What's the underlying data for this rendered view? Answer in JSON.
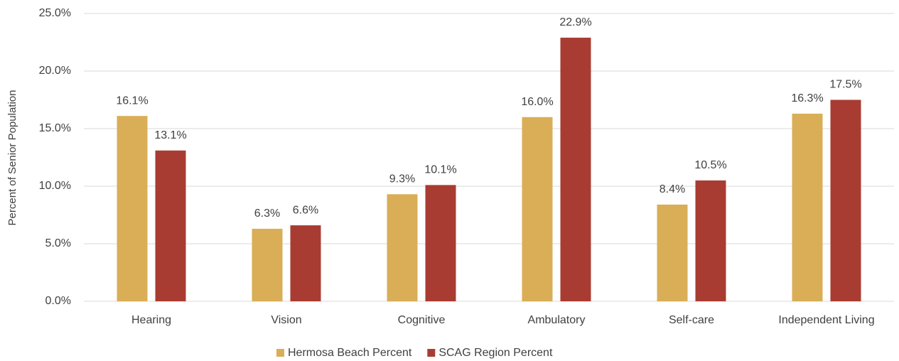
{
  "chart_data": {
    "type": "bar",
    "y_label": "Percent of Senior Population",
    "categories": [
      "Hearing",
      "Vision",
      "Cognitive",
      "Ambulatory",
      "Self-care",
      "Independent Living"
    ],
    "series": [
      {
        "name": "Hermosa Beach Percent",
        "color": "#d9ae57",
        "values": [
          16.1,
          6.3,
          9.3,
          16.0,
          8.4,
          16.3
        ],
        "value_labels": [
          "16.1%",
          "6.3%",
          "9.3%",
          "16.0%",
          "8.4%",
          "16.3%"
        ]
      },
      {
        "name": "SCAG Region Percent",
        "color": "#a93c32",
        "values": [
          13.1,
          6.6,
          10.1,
          22.9,
          10.5,
          17.5
        ],
        "value_labels": [
          "13.1%",
          "6.6%",
          "10.1%",
          "22.9%",
          "10.5%",
          "17.5%"
        ]
      }
    ],
    "ylim": [
      0,
      25
    ],
    "yticks": [
      {
        "value": 0,
        "label": "0.0%"
      },
      {
        "value": 5,
        "label": "5.0%"
      },
      {
        "value": 10,
        "label": "10.0%"
      },
      {
        "value": 15,
        "label": "15.0%"
      },
      {
        "value": 20,
        "label": "20.0%"
      },
      {
        "value": 25,
        "label": "25.0%"
      }
    ],
    "grid": true,
    "legend": "bottom"
  }
}
